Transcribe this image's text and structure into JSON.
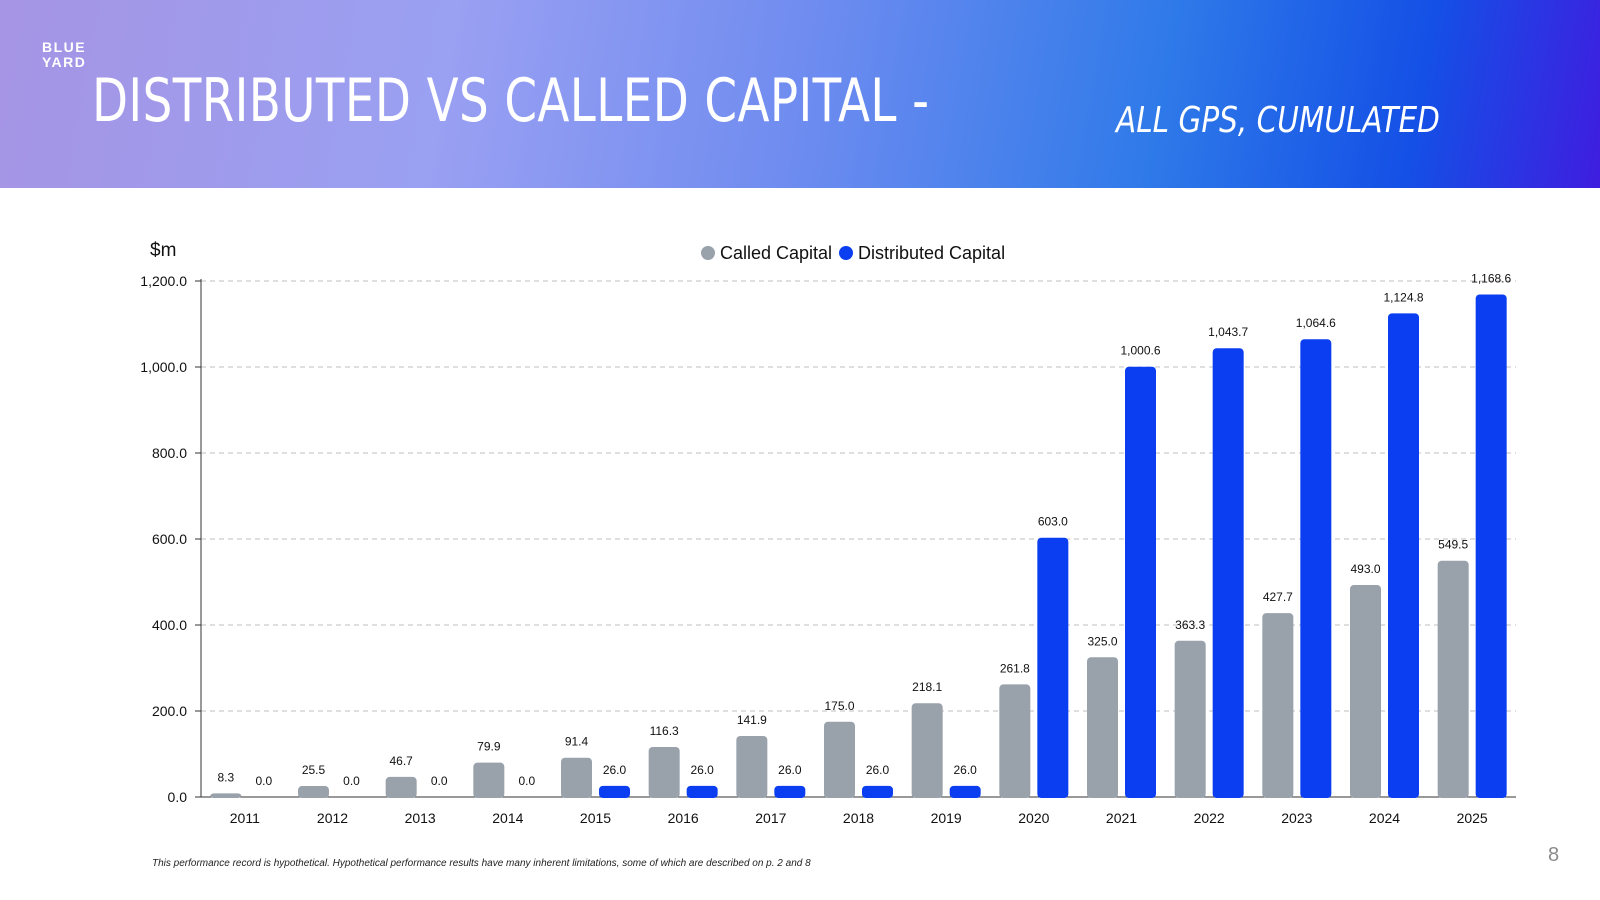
{
  "header": {
    "logo_line1": "BLUE",
    "logo_line2": "YARD",
    "title": "DISTRIBUTED VS CALLED CAPITAL -",
    "subtitle": "ALL GPS, CUMULATED"
  },
  "footnote": "This performance record is hypothetical. Hypothetical performance results have many inherent limitations, some of which are described on p. 2 and 8",
  "page_number": "8",
  "colors": {
    "called": "#99a1ab",
    "distributed": "#0a3ef0",
    "grid": "#bfbfbf"
  },
  "chart_data": {
    "type": "bar",
    "unit_label": "$m",
    "legend_position": "top-center",
    "grid": true,
    "ylim": [
      0,
      1200
    ],
    "yticks": [
      "0.0",
      "200.0",
      "400.0",
      "600.0",
      "800.0",
      "1,000.0",
      "1,200.0"
    ],
    "categories": [
      "2011",
      "2012",
      "2013",
      "2014",
      "2015",
      "2016",
      "2017",
      "2018",
      "2019",
      "2020",
      "2021",
      "2022",
      "2023",
      "2024",
      "2025"
    ],
    "series": [
      {
        "name": "Called Capital",
        "values": [
          8.3,
          25.5,
          46.7,
          79.9,
          91.4,
          116.3,
          141.9,
          175.0,
          218.1,
          261.8,
          325.0,
          363.3,
          427.7,
          493.0,
          549.5
        ],
        "labels": [
          "8.3",
          "25.5",
          "46.7",
          "79.9",
          "91.4",
          "116.3",
          "141.9",
          "175.0",
          "218.1",
          "261.8",
          "325.0",
          "363.3",
          "427.7",
          "493.0",
          "549.5"
        ]
      },
      {
        "name": "Distributed Capital",
        "values": [
          0.0,
          0.0,
          0.0,
          0.0,
          26.0,
          26.0,
          26.0,
          26.0,
          26.0,
          603.0,
          1000.6,
          1043.7,
          1064.6,
          1124.8,
          1168.6
        ],
        "labels": [
          "0.0",
          "0.0",
          "0.0",
          "0.0",
          "26.0",
          "26.0",
          "26.0",
          "26.0",
          "26.0",
          "603.0",
          "1,000.6",
          "1,043.7",
          "1,064.6",
          "1,124.8",
          "1,168.6"
        ]
      }
    ]
  }
}
